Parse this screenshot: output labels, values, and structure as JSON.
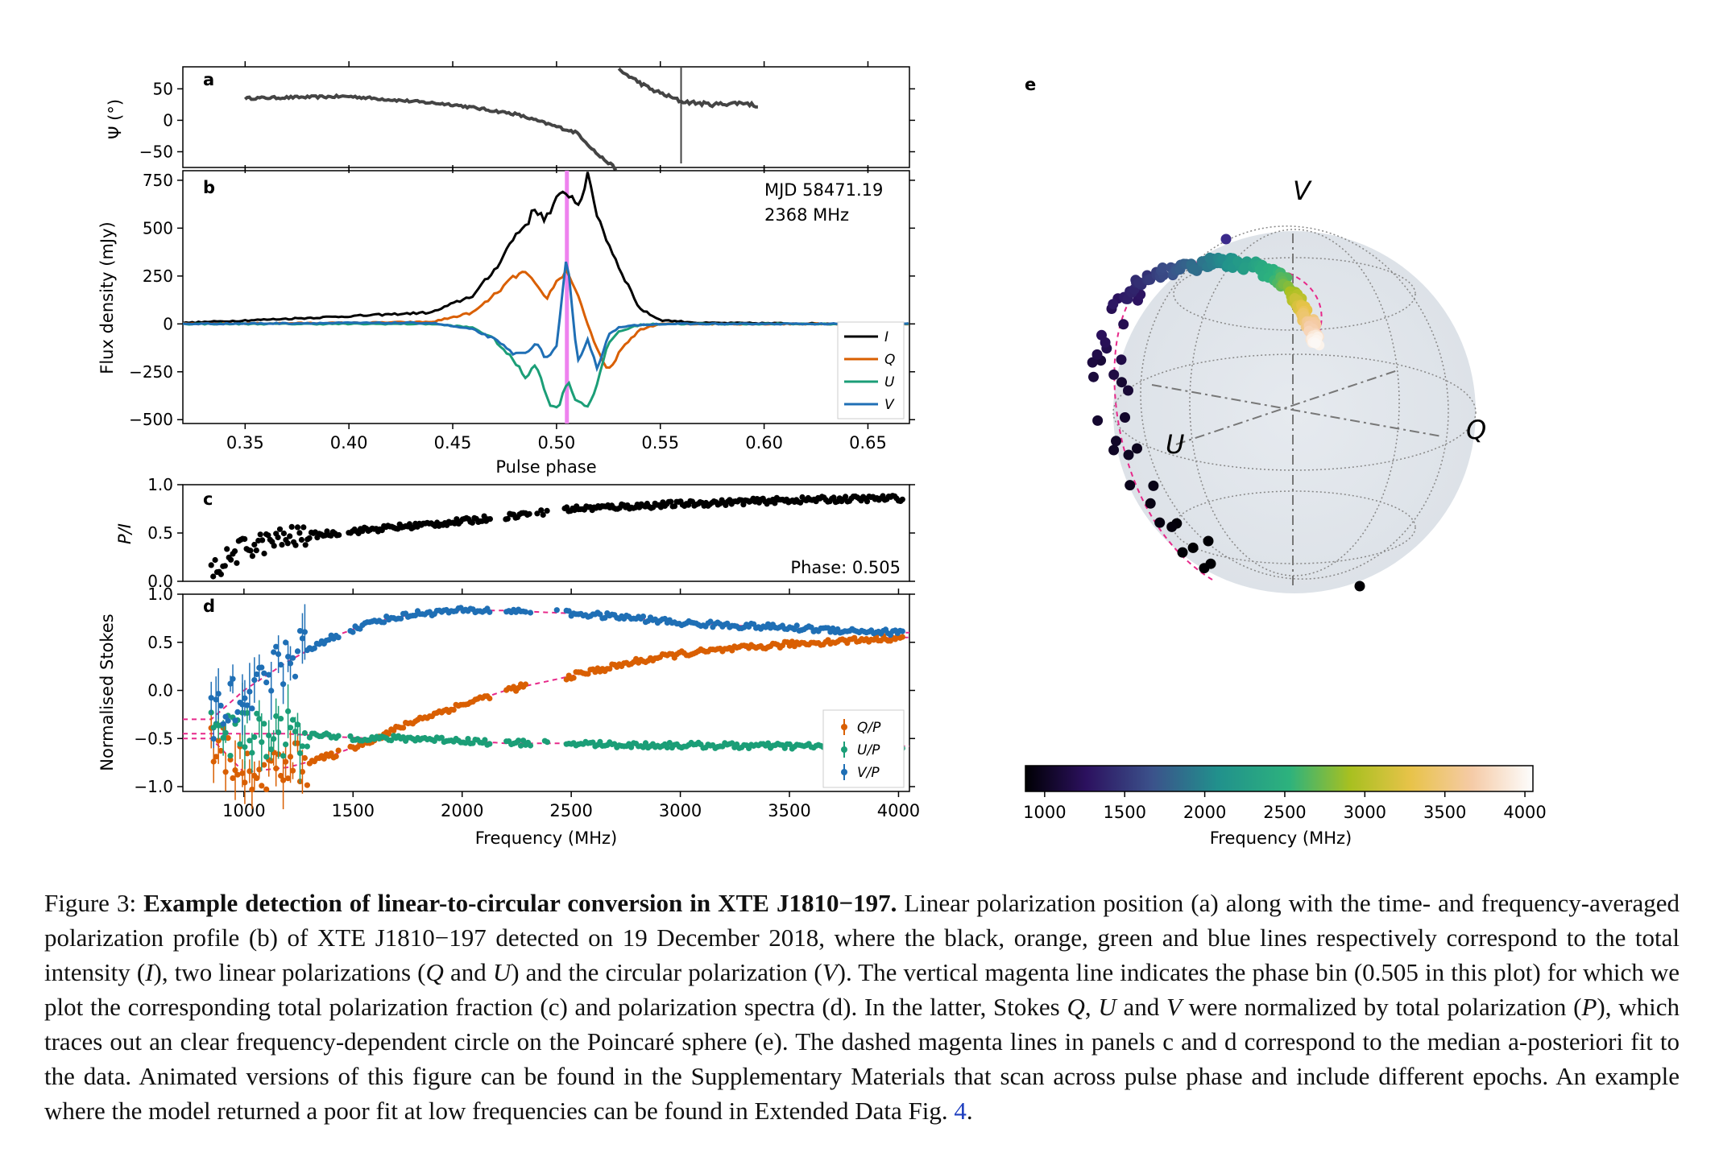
{
  "panels": {
    "a": {
      "label": "a",
      "ylabel": "Ψ (°)",
      "yticks": [
        "50",
        "0",
        "−50"
      ],
      "ytick_values": [
        50,
        0,
        -50
      ],
      "ylim": [
        -75,
        85
      ]
    },
    "b": {
      "label": "b",
      "ylabel": "Flux density (mJy)",
      "xlabel": "Pulse phase",
      "xticks": [
        "0.35",
        "0.40",
        "0.45",
        "0.50",
        "0.55",
        "0.60",
        "0.65"
      ],
      "xtick_values": [
        0.35,
        0.4,
        0.45,
        0.5,
        0.55,
        0.6,
        0.65
      ],
      "yticks": [
        "750",
        "500",
        "250",
        "0",
        "−250",
        "−500"
      ],
      "ytick_values": [
        750,
        500,
        250,
        0,
        -250,
        -500
      ],
      "xlim": [
        0.32,
        0.67
      ],
      "ylim": [
        -520,
        800
      ],
      "annotation_line1": "MJD 58471.19",
      "annotation_line2": "2368 MHz",
      "marker_phase": 0.505,
      "legend": [
        "I",
        "Q",
        "U",
        "V"
      ]
    },
    "c": {
      "label": "c",
      "ylabel": "P/I",
      "yticks": [
        "1.0",
        "0.5",
        "0.0"
      ],
      "ytick_values": [
        1.0,
        0.5,
        0.0
      ],
      "ylim": [
        0,
        1
      ],
      "annotation": "Phase: 0.505"
    },
    "d": {
      "label": "d",
      "ylabel": "Normalised Stokes",
      "xlabel": "Frequency (MHz)",
      "xticks": [
        "1000",
        "1500",
        "2000",
        "2500",
        "3000",
        "3500",
        "4000"
      ],
      "xtick_values": [
        1000,
        1500,
        2000,
        2500,
        3000,
        3500,
        4000
      ],
      "yticks": [
        "1.0",
        "0.5",
        "0.0",
        "−0.5",
        "−1.0"
      ],
      "ytick_values": [
        1.0,
        0.5,
        0.0,
        -0.5,
        -1.0
      ],
      "xlim": [
        720,
        4050
      ],
      "ylim": [
        -1.05,
        1.0
      ],
      "legend": [
        "Q/P",
        "U/P",
        "V/P"
      ]
    },
    "e": {
      "label": "e",
      "axis_labels": [
        "V",
        "Q",
        "U"
      ],
      "colorbar_ticks": [
        "1000",
        "1500",
        "2000",
        "2500",
        "3000",
        "3500",
        "4000"
      ],
      "colorbar_tick_values": [
        1000,
        1500,
        2000,
        2500,
        3000,
        3500,
        4000
      ],
      "colorbar_range": [
        880,
        4050
      ],
      "colorbar_label": "Frequency (MHz)"
    }
  },
  "colors": {
    "I": "#000000",
    "Q": "#d95f02",
    "U": "#1b9e77",
    "V": "#1f6fb5",
    "marker": "#ee82ee",
    "fit": "#e7298a",
    "angle": "#444444"
  },
  "chart_data": [
    {
      "type": "line",
      "panel": "a",
      "ylabel": "Ψ (°)",
      "x": [
        0.35,
        0.4,
        0.45,
        0.48,
        0.495,
        0.5,
        0.51,
        0.52,
        0.53
      ],
      "series": [
        {
          "values": [
            35,
            38,
            25,
            10,
            -5,
            -10,
            -20,
            -55,
            -80
          ]
        }
      ],
      "series_b": {
        "x": [
          0.53,
          0.545,
          0.56,
          0.575,
          0.59,
          0.598
        ],
        "values": [
          80,
          50,
          30,
          25,
          28,
          22
        ]
      }
    },
    {
      "type": "line",
      "panel": "b",
      "xlabel": "Pulse phase",
      "ylabel": "Flux density (mJy)",
      "x": [
        0.32,
        0.4,
        0.44,
        0.46,
        0.47,
        0.48,
        0.485,
        0.49,
        0.495,
        0.5,
        0.505,
        0.51,
        0.515,
        0.52,
        0.525,
        0.53,
        0.54,
        0.55,
        0.57,
        0.67
      ],
      "series": [
        {
          "name": "I",
          "values": [
            5,
            40,
            60,
            150,
            280,
            460,
            520,
            600,
            550,
            640,
            700,
            620,
            760,
            560,
            420,
            300,
            80,
            20,
            5,
            0
          ]
        },
        {
          "name": "Q",
          "values": [
            0,
            5,
            10,
            60,
            150,
            250,
            270,
            200,
            130,
            220,
            280,
            160,
            0,
            -150,
            -250,
            -150,
            -30,
            0,
            0,
            0
          ]
        },
        {
          "name": "U",
          "values": [
            0,
            0,
            0,
            -20,
            -80,
            -200,
            -280,
            -200,
            -380,
            -450,
            -300,
            -400,
            -430,
            -300,
            -100,
            -40,
            -5,
            0,
            0,
            0
          ]
        },
        {
          "name": "V",
          "values": [
            0,
            5,
            5,
            -30,
            -80,
            -160,
            -150,
            -100,
            -180,
            -120,
            360,
            -200,
            -80,
            -240,
            -50,
            -20,
            -5,
            0,
            0,
            0
          ]
        }
      ],
      "xlim": [
        0.32,
        0.67
      ],
      "ylim": [
        -520,
        800
      ]
    },
    {
      "type": "scatter",
      "panel": "c",
      "ylabel": "P/I",
      "x": [
        850,
        1000,
        1200,
        1500,
        2000,
        2500,
        3000,
        3500,
        4000
      ],
      "values": [
        0.1,
        0.35,
        0.45,
        0.52,
        0.62,
        0.75,
        0.8,
        0.84,
        0.86
      ],
      "ylim": [
        0,
        1
      ]
    },
    {
      "type": "scatter",
      "panel": "d",
      "xlabel": "Frequency (MHz)",
      "ylabel": "Normalised Stokes",
      "x": [
        850,
        1000,
        1200,
        1400,
        1600,
        1800,
        2000,
        2200,
        2500,
        2800,
        3000,
        3500,
        4000
      ],
      "series": [
        {
          "name": "Q/P",
          "values": [
            -0.5,
            -0.85,
            -0.8,
            -0.68,
            -0.5,
            -0.3,
            -0.15,
            0.0,
            0.15,
            0.3,
            0.38,
            0.48,
            0.55
          ]
        },
        {
          "name": "U/P",
          "values": [
            -0.45,
            -0.45,
            -0.45,
            -0.48,
            -0.5,
            -0.5,
            -0.52,
            -0.55,
            -0.55,
            -0.57,
            -0.57,
            -0.58,
            -0.58
          ]
        },
        {
          "name": "V/P",
          "values": [
            -0.3,
            0.0,
            0.3,
            0.55,
            0.72,
            0.8,
            0.83,
            0.83,
            0.8,
            0.75,
            0.7,
            0.65,
            0.6
          ]
        }
      ],
      "xlim": [
        720,
        4050
      ],
      "ylim": [
        -1.05,
        1.0
      ]
    }
  ],
  "caption": {
    "prefix": "Figure 3: ",
    "title": "Example detection of linear-to-circular conversion in XTE J1810−197.",
    "t1": " Linear polarization position (a) along with the time- and frequency-averaged polarization profile (b) of XTE J1810−197 detected on 19 December 2018, where the black, orange, green and blue lines respectively correspond to the total intensity (",
    "sym_I": "I",
    "t2": "), two linear polarizations (",
    "sym_Q": "Q",
    "t3": " and ",
    "sym_U": "U",
    "t4": ") and the circular polarization (",
    "sym_V": "V",
    "t5": "). The vertical magenta line indicates the phase bin (0.505 in this plot) for which we plot the corresponding total polarization fraction (c) and polarization spectra (d). In the latter, Stokes ",
    "sym_Q2": "Q",
    "t6": ", ",
    "sym_U2": "U",
    "t7": " and ",
    "sym_V2": "V",
    "t8": " were normalized by total polarization (",
    "sym_P": "P",
    "t9": "), which traces out an clear frequency-dependent circle on the Poincaré sphere (e). The dashed magenta lines in panels c and d correspond to the median a-posteriori fit to the data. Animated versions of this figure can be found in the Supplementary Materials that scan across pulse phase and include different epochs. An example where the model returned a poor fit at low frequencies can be found in Extended Data Fig. ",
    "link": "4",
    "t10": "."
  }
}
